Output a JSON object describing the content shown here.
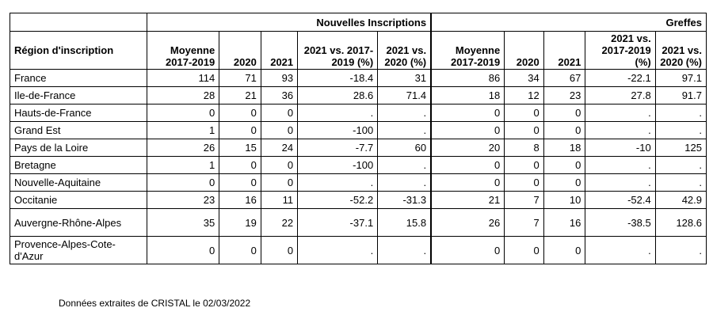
{
  "groups": {
    "nouvelles": "Nouvelles Inscriptions",
    "greffes": "Greffes"
  },
  "columns": {
    "region": "Région d'inscription",
    "ni_moy": "Moyenne 2017-2019",
    "ni_2020": "2020",
    "ni_2021": "2021",
    "ni_vs1719": "2021 vs. 2017-2019 (%)",
    "ni_vs2020": "2021 vs. 2020 (%)",
    "gr_moy": "Moyenne 2017-2019",
    "gr_2020": "2020",
    "gr_2021": "2021",
    "gr_vs1719": "2021 vs. 2017-2019 (%)",
    "gr_vs2020": "2021 vs. 2020 (%)"
  },
  "rows": [
    {
      "region": "France",
      "ni_moy": "114",
      "ni_2020": "71",
      "ni_2021": "93",
      "ni_vs1719": "-18.4",
      "ni_vs2020": "31",
      "gr_moy": "86",
      "gr_2020": "34",
      "gr_2021": "67",
      "gr_vs1719": "-22.1",
      "gr_vs2020": "97.1"
    },
    {
      "region": "Ile-de-France",
      "ni_moy": "28",
      "ni_2020": "21",
      "ni_2021": "36",
      "ni_vs1719": "28.6",
      "ni_vs2020": "71.4",
      "gr_moy": "18",
      "gr_2020": "12",
      "gr_2021": "23",
      "gr_vs1719": "27.8",
      "gr_vs2020": "91.7"
    },
    {
      "region": "Hauts-de-France",
      "ni_moy": "0",
      "ni_2020": "0",
      "ni_2021": "0",
      "ni_vs1719": ".",
      "ni_vs2020": ".",
      "gr_moy": "0",
      "gr_2020": "0",
      "gr_2021": "0",
      "gr_vs1719": ".",
      "gr_vs2020": "."
    },
    {
      "region": "Grand Est",
      "ni_moy": "1",
      "ni_2020": "0",
      "ni_2021": "0",
      "ni_vs1719": "-100",
      "ni_vs2020": ".",
      "gr_moy": "0",
      "gr_2020": "0",
      "gr_2021": "0",
      "gr_vs1719": ".",
      "gr_vs2020": "."
    },
    {
      "region": "Pays de la Loire",
      "ni_moy": "26",
      "ni_2020": "15",
      "ni_2021": "24",
      "ni_vs1719": "-7.7",
      "ni_vs2020": "60",
      "gr_moy": "20",
      "gr_2020": "8",
      "gr_2021": "18",
      "gr_vs1719": "-10",
      "gr_vs2020": "125"
    },
    {
      "region": "Bretagne",
      "ni_moy": "1",
      "ni_2020": "0",
      "ni_2021": "0",
      "ni_vs1719": "-100",
      "ni_vs2020": ".",
      "gr_moy": "0",
      "gr_2020": "0",
      "gr_2021": "0",
      "gr_vs1719": ".",
      "gr_vs2020": "."
    },
    {
      "region": "Nouvelle-Aquitaine",
      "ni_moy": "0",
      "ni_2020": "0",
      "ni_2021": "0",
      "ni_vs1719": ".",
      "ni_vs2020": ".",
      "gr_moy": "0",
      "gr_2020": "0",
      "gr_2021": "0",
      "gr_vs1719": ".",
      "gr_vs2020": "."
    },
    {
      "region": "Occitanie",
      "ni_moy": "23",
      "ni_2020": "16",
      "ni_2021": "11",
      "ni_vs1719": "-52.2",
      "ni_vs2020": "-31.3",
      "gr_moy": "21",
      "gr_2020": "7",
      "gr_2021": "10",
      "gr_vs1719": "-52.4",
      "gr_vs2020": "42.9"
    },
    {
      "region": "Auvergne-Rhône-Alpes",
      "ni_moy": "35",
      "ni_2020": "19",
      "ni_2021": "22",
      "ni_vs1719": "-37.1",
      "ni_vs2020": "15.8",
      "gr_moy": "26",
      "gr_2020": "7",
      "gr_2021": "16",
      "gr_vs1719": "-38.5",
      "gr_vs2020": "128.6"
    },
    {
      "region": "Provence-Alpes-Cote-d'Azur",
      "ni_moy": "0",
      "ni_2020": "0",
      "ni_2021": "0",
      "ni_vs1719": ".",
      "ni_vs2020": ".",
      "gr_moy": "0",
      "gr_2020": "0",
      "gr_2021": "0",
      "gr_vs1719": ".",
      "gr_vs2020": "."
    }
  ],
  "footnote": "Données extraites de CRISTAL le 02/03/2022"
}
